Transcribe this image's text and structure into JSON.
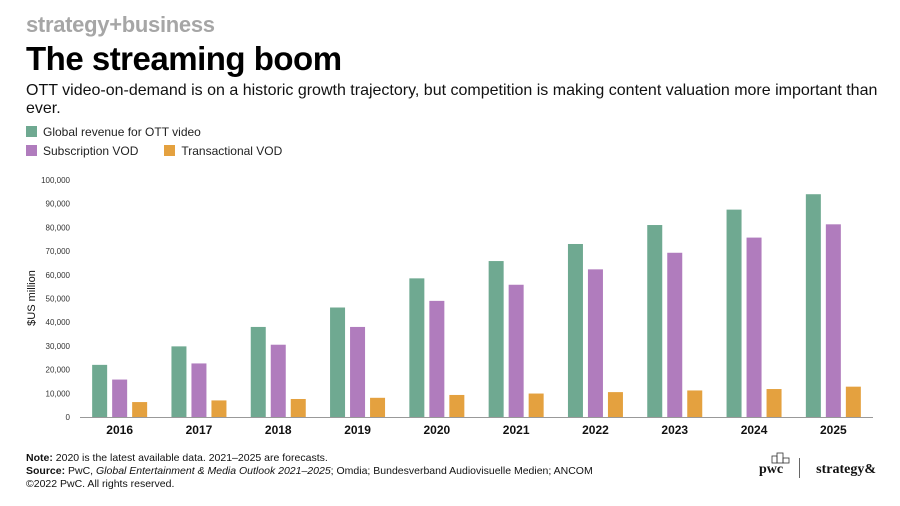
{
  "header": {
    "brand": "strategy+business",
    "title": "The streaming boom",
    "subtitle": "OTT video-on-demand is on a historic growth trajectory, but competition is making content valuation more important than ever."
  },
  "legend": {
    "global": "Global revenue for OTT video",
    "svod": "Subscription VOD",
    "tvod": "Transactional VOD"
  },
  "colors": {
    "global": "#6fa991",
    "svod": "#b07cbd",
    "tvod": "#e4a13f",
    "axis": "#999999",
    "grid": "#dddddd"
  },
  "chart_data": {
    "type": "bar",
    "categories": [
      "2016",
      "2017",
      "2018",
      "2019",
      "2020",
      "2021",
      "2022",
      "2023",
      "2024",
      "2025"
    ],
    "series": [
      {
        "name": "Global revenue for OTT video",
        "values": [
          22000,
          29800,
          38000,
          46200,
          58500,
          65800,
          73000,
          81000,
          87500,
          94000
        ]
      },
      {
        "name": "Subscription VOD",
        "values": [
          15800,
          22600,
          30500,
          38000,
          49000,
          55800,
          62300,
          69300,
          75700,
          81300
        ]
      },
      {
        "name": "Transactional VOD",
        "values": [
          6300,
          7000,
          7600,
          8100,
          9300,
          9900,
          10500,
          11200,
          11800,
          12800
        ]
      }
    ],
    "ylabel": "$US million",
    "xlabel": "",
    "ylim": [
      0,
      100000
    ],
    "yticks": [
      "0",
      "10,000",
      "20,000",
      "30,000",
      "40,000",
      "50,000",
      "60,000",
      "70,000",
      "80,000",
      "90,000",
      "100,000"
    ],
    "grid": false,
    "legend_position": "top-left"
  },
  "footer": {
    "note_label": "Note:",
    "note_text": " 2020 is the latest available data. 2021–2025 are forecasts.",
    "source_label": "Source:",
    "source_text_a": " PwC, ",
    "source_italic": "Global Entertainment & Media Outlook 2021–2025",
    "source_text_b": "; Omdia; Bundesverband Audiovisuelle Medien; ANCOM",
    "copyright": "©2022 PwC. All rights reserved.",
    "logo_pwc": "pwc",
    "logo_strategy": "strategy&"
  }
}
